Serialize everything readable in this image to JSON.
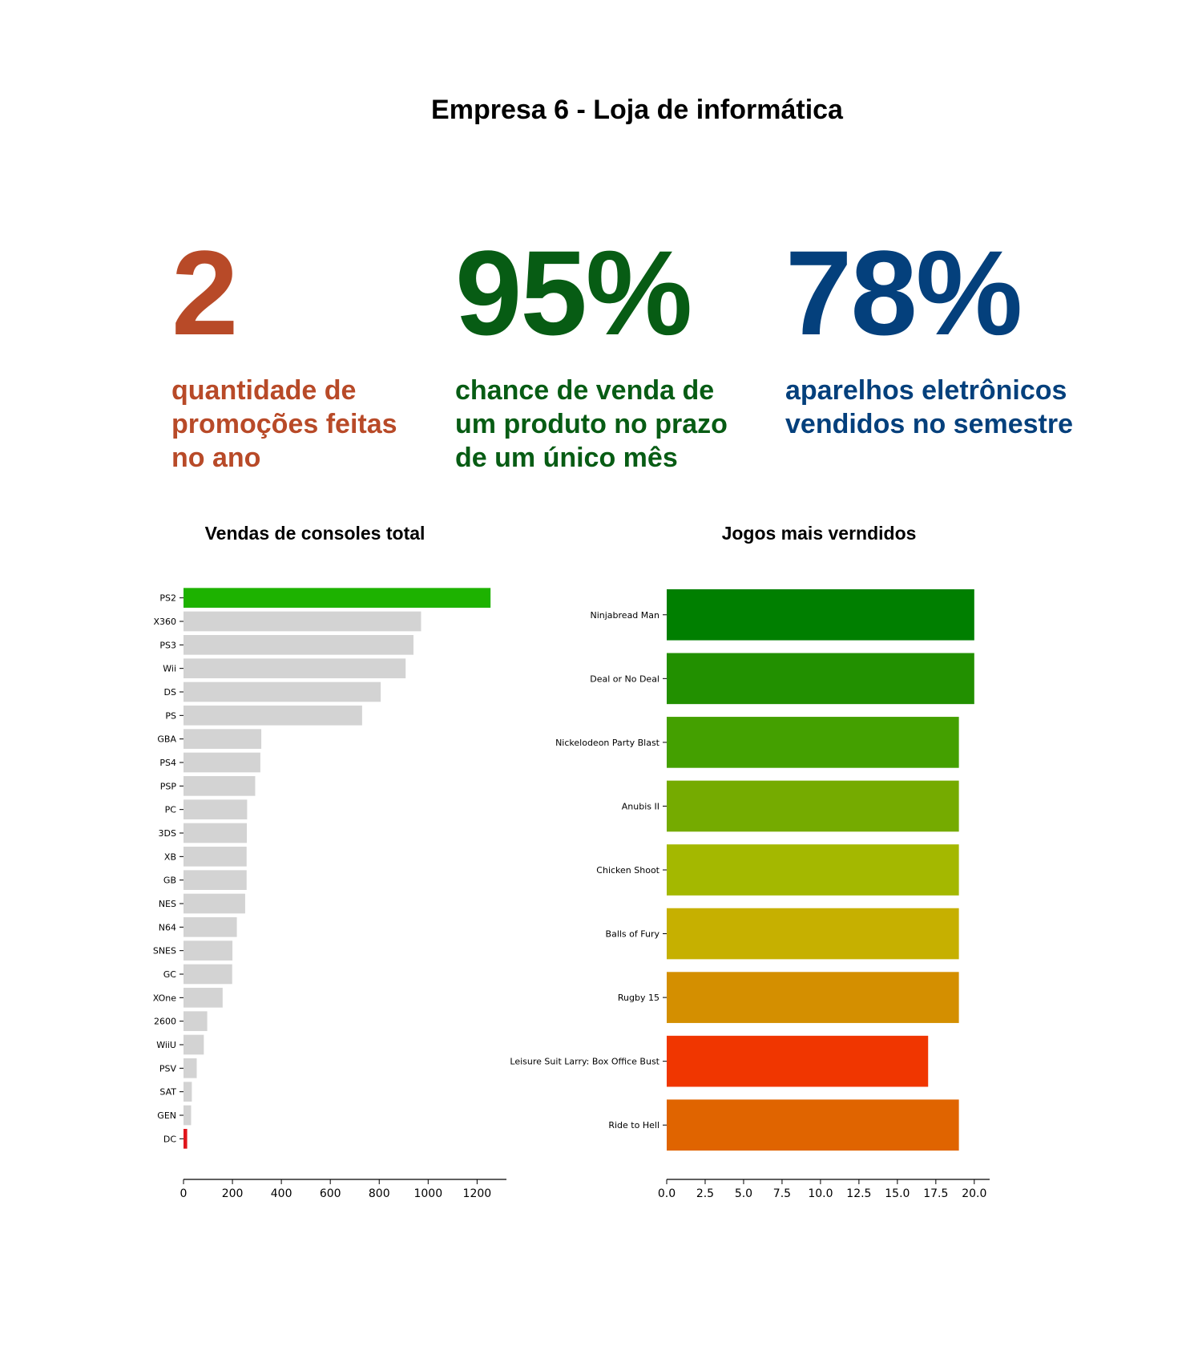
{
  "page_title": "Empresa 6 - Loja de informática",
  "kpis": [
    {
      "value": "2",
      "color": "#b84a28",
      "desc_lines": [
        "quantidade de",
        "promoções feitas",
        "no ano"
      ]
    },
    {
      "value": "95%",
      "color": "#075c14",
      "desc_lines": [
        "chance de venda de",
        "um produto no prazo",
        "de um único mês"
      ]
    },
    {
      "value": "78%",
      "color": "#04407c",
      "desc_lines": [
        "aparelhos eletrônicos",
        "vendidos no semestre"
      ]
    }
  ],
  "chart_data": [
    {
      "type": "bar",
      "orientation": "horizontal",
      "title": "Vendas de consoles total",
      "categories": [
        "PS2",
        "X360",
        "PS3",
        "Wii",
        "DS",
        "PS",
        "GBA",
        "PS4",
        "PSP",
        "PC",
        "3DS",
        "XB",
        "GB",
        "NES",
        "N64",
        "SNES",
        "GC",
        "XOne",
        "2600",
        "WiiU",
        "PSV",
        "SAT",
        "GEN",
        "DC"
      ],
      "values": [
        1255,
        971,
        940,
        908,
        806,
        730,
        318,
        314,
        293,
        260,
        259,
        258,
        258,
        252,
        218,
        200,
        199,
        160,
        97,
        83,
        54,
        34,
        31,
        15
      ],
      "colors": [
        "#1db200",
        "#d3d3d3",
        "#d3d3d3",
        "#d3d3d3",
        "#d3d3d3",
        "#d3d3d3",
        "#d3d3d3",
        "#d3d3d3",
        "#d3d3d3",
        "#d3d3d3",
        "#d3d3d3",
        "#d3d3d3",
        "#d3d3d3",
        "#d3d3d3",
        "#d3d3d3",
        "#d3d3d3",
        "#d3d3d3",
        "#d3d3d3",
        "#d3d3d3",
        "#d3d3d3",
        "#d3d3d3",
        "#d3d3d3",
        "#d3d3d3",
        "#e0161c"
      ],
      "xlim": [
        0,
        1320
      ],
      "xticks": [
        0,
        200,
        400,
        600,
        800,
        1000,
        1200
      ],
      "xtick_labels": [
        "0",
        "200",
        "400",
        "600",
        "800",
        "1000",
        "1200"
      ]
    },
    {
      "type": "bar",
      "orientation": "horizontal",
      "title": "Jogos mais verndidos",
      "categories": [
        "Ninjabread Man",
        "Deal or No Deal",
        "Nickelodeon Party Blast",
        "Anubis II",
        "Chicken Shoot",
        "Balls of Fury",
        "Rugby 15",
        "Leisure Suit Larry: Box Office Bust",
        "Ride to Hell"
      ],
      "values": [
        20,
        20,
        19,
        19,
        19,
        19,
        19,
        17,
        19
      ],
      "colors": [
        "#007f00",
        "#229000",
        "#44a000",
        "#75ab00",
        "#a4b800",
        "#c6b000",
        "#d48f00",
        "#f03600",
        "#e06400"
      ],
      "xlim": [
        0,
        21
      ],
      "xticks": [
        0,
        2.5,
        5,
        7.5,
        10,
        12.5,
        15,
        17.5,
        20
      ],
      "xtick_labels": [
        "0.0",
        "2.5",
        "5.0",
        "7.5",
        "10.0",
        "12.5",
        "15.0",
        "17.5",
        "20.0"
      ]
    }
  ]
}
